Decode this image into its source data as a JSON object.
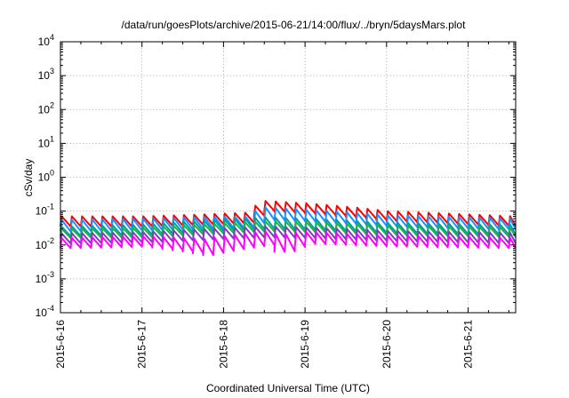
{
  "chart_data": {
    "type": "line",
    "title": "/data/run/goesPlots/archive/2015-06-21/14:00/flux/../bryn/5daysMars.plot",
    "xlabel": "Coordinated Universal Time (UTC)",
    "ylabel": "cSv/day",
    "yscale": "log",
    "ylim": [
      0.0001,
      10000
    ],
    "xlim": [
      "2015-06-16 00:00",
      "2015-06-21 14:00"
    ],
    "y_ticks": [
      {
        "base": "10",
        "exp": "-4",
        "value": 0.0001
      },
      {
        "base": "10",
        "exp": "-3",
        "value": 0.001
      },
      {
        "base": "10",
        "exp": "-2",
        "value": 0.01
      },
      {
        "base": "10",
        "exp": "-1",
        "value": 0.1
      },
      {
        "base": "10",
        "exp": "0",
        "value": 1
      },
      {
        "base": "10",
        "exp": "1",
        "value": 10
      },
      {
        "base": "10",
        "exp": "2",
        "value": 100
      },
      {
        "base": "10",
        "exp": "3",
        "value": 1000
      },
      {
        "base": "10",
        "exp": "4",
        "value": 10000
      }
    ],
    "x_ticks": [
      "2015-6-16",
      "2015-6-17",
      "2015-6-18",
      "2015-6-19",
      "2015-6-20",
      "2015-6-21"
    ],
    "grid": true,
    "sawtooth_period_hours": 3,
    "series": [
      {
        "color": "#ff0000",
        "peak_profile": [
          [
            "2015-06-16 00:00",
            0.07,
            0.035
          ],
          [
            "2015-06-17 00:00",
            0.07,
            0.035
          ],
          [
            "2015-06-17 18:00",
            0.08,
            0.04
          ],
          [
            "2015-06-18 06:00",
            0.09,
            0.045
          ],
          [
            "2015-06-18 12:00",
            0.2,
            0.1
          ],
          [
            "2015-06-19 00:00",
            0.17,
            0.085
          ],
          [
            "2015-06-20 00:00",
            0.1,
            0.05
          ],
          [
            "2015-06-21 00:00",
            0.08,
            0.04
          ],
          [
            "2015-06-21 14:00",
            0.07,
            0.035
          ]
        ]
      },
      {
        "color": "#1e90ff",
        "peak_profile": [
          [
            "2015-06-16 00:00",
            0.055,
            0.025
          ],
          [
            "2015-06-17 00:00",
            0.06,
            0.027
          ],
          [
            "2015-06-18 06:00",
            0.07,
            0.032
          ],
          [
            "2015-06-18 12:00",
            0.13,
            0.055
          ],
          [
            "2015-06-19 00:00",
            0.11,
            0.05
          ],
          [
            "2015-06-20 00:00",
            0.075,
            0.035
          ],
          [
            "2015-06-21 00:00",
            0.065,
            0.03
          ],
          [
            "2015-06-21 14:00",
            0.06,
            0.028
          ]
        ]
      },
      {
        "color": "#00a0a0",
        "peak_profile": [
          [
            "2015-06-16 00:00",
            0.035,
            0.018
          ],
          [
            "2015-06-17 00:00",
            0.04,
            0.02
          ],
          [
            "2015-06-18 12:00",
            0.065,
            0.03
          ],
          [
            "2015-06-19 00:00",
            0.06,
            0.028
          ],
          [
            "2015-06-20 00:00",
            0.045,
            0.022
          ],
          [
            "2015-06-21 14:00",
            0.04,
            0.02
          ]
        ]
      },
      {
        "color": "#22b14c",
        "peak_profile": [
          [
            "2015-06-16 00:00",
            0.03,
            0.016
          ],
          [
            "2015-06-17 00:00",
            0.032,
            0.017
          ],
          [
            "2015-06-18 12:00",
            0.05,
            0.025
          ],
          [
            "2015-06-19 00:00",
            0.048,
            0.024
          ],
          [
            "2015-06-20 00:00",
            0.038,
            0.019
          ],
          [
            "2015-06-21 14:00",
            0.033,
            0.017
          ]
        ]
      },
      {
        "color": "#7b3fbf",
        "peak_profile": [
          [
            "2015-06-16 00:00",
            0.022,
            0.011
          ],
          [
            "2015-06-17 00:00",
            0.024,
            0.012
          ],
          [
            "2015-06-18 12:00",
            0.035,
            0.017
          ],
          [
            "2015-06-19 00:00",
            0.033,
            0.016
          ],
          [
            "2015-06-20 00:00",
            0.026,
            0.013
          ],
          [
            "2015-06-21 14:00",
            0.023,
            0.011
          ]
        ]
      },
      {
        "color": "#ff00ff",
        "peak_profile": [
          [
            "2015-06-16 00:00",
            0.016,
            0.008
          ],
          [
            "2015-06-17 00:00",
            0.018,
            0.009
          ],
          [
            "2015-06-17 18:00",
            0.015,
            0.005
          ],
          [
            "2015-06-18 12:00",
            0.025,
            0.01
          ],
          [
            "2015-06-18 16:00",
            0.02,
            0.005
          ],
          [
            "2015-06-19 00:00",
            0.024,
            0.011
          ],
          [
            "2015-06-20 00:00",
            0.019,
            0.009
          ],
          [
            "2015-06-21 14:00",
            0.016,
            0.008
          ]
        ]
      }
    ]
  }
}
